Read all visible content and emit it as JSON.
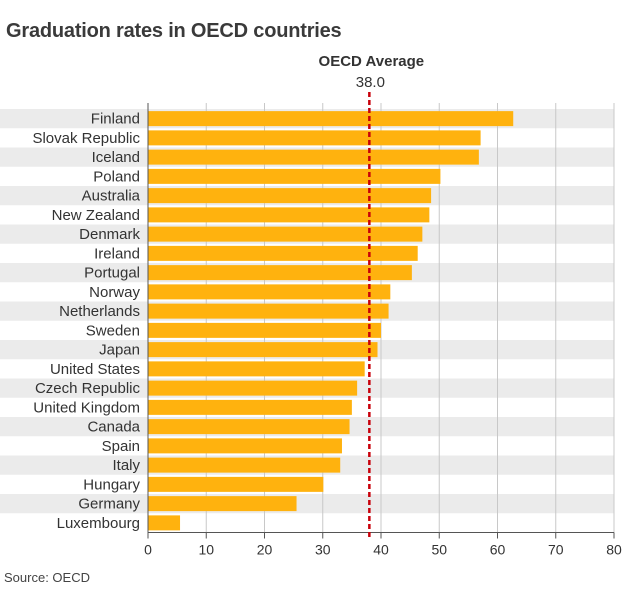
{
  "title": "Graduation rates in OECD countries",
  "source": "Source: OECD",
  "colors": {
    "bar": "#ffb20e",
    "average": "#c8000a",
    "band": "#ebebeb",
    "grid": "#c8c8c8"
  },
  "chart_data": {
    "type": "bar",
    "orientation": "horizontal",
    "categories": [
      "Finland",
      "Slovak Republic",
      "Iceland",
      "Poland",
      "Australia",
      "New Zealand",
      "Denmark",
      "Ireland",
      "Portugal",
      "Norway",
      "Netherlands",
      "Sweden",
      "Japan",
      "United States",
      "Czech Republic",
      "United Kingdom",
      "Canada",
      "Spain",
      "Italy",
      "Hungary",
      "Germany",
      "Luxembourg"
    ],
    "values": [
      62.7,
      57.1,
      56.8,
      50.2,
      48.6,
      48.3,
      47.1,
      46.3,
      45.3,
      41.6,
      41.3,
      40.0,
      39.4,
      37.2,
      35.9,
      35.0,
      34.6,
      33.3,
      33.0,
      30.1,
      25.5,
      5.5
    ],
    "xlim": [
      0,
      80
    ],
    "xticks": [
      0,
      10,
      20,
      30,
      40,
      50,
      60,
      70,
      80
    ],
    "reference_line": {
      "label": "OECD Average",
      "value": 38.0,
      "value_label": "38.0"
    },
    "grid": true
  }
}
